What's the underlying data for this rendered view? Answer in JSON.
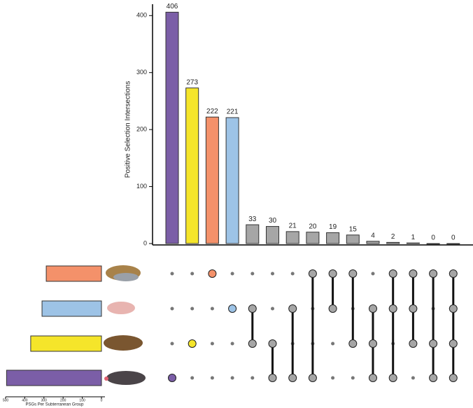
{
  "chart_data": {
    "type": "upset",
    "ylabel": "Positive Selection Intersections",
    "values": [
      406,
      273,
      222,
      221,
      33,
      30,
      21,
      20,
      19,
      15,
      4,
      2,
      1,
      0,
      0
    ],
    "colors": [
      "#7b5ea7",
      "#f5e52a",
      "#f4916a",
      "#9dc3e6",
      "#a6a6a6",
      "#a6a6a6",
      "#a6a6a6",
      "#a6a6a6",
      "#a6a6a6",
      "#a6a6a6",
      "#a6a6a6",
      "#a6a6a6",
      "#a6a6a6",
      "#a6a6a6",
      "#a6a6a6"
    ],
    "members": [
      [
        3
      ],
      [
        2
      ],
      [
        0
      ],
      [
        1
      ],
      [
        1,
        2
      ],
      [
        2,
        3
      ],
      [
        1,
        3
      ],
      [
        0,
        3
      ],
      [
        0,
        1
      ],
      [
        0,
        2
      ],
      [
        1,
        2,
        3
      ],
      [
        0,
        1,
        3
      ],
      [
        0,
        1,
        2
      ],
      [
        0,
        2,
        3
      ],
      [
        0,
        1,
        2,
        3
      ]
    ],
    "ylim": [
      0,
      420
    ],
    "yticks": [
      0,
      100,
      200,
      300,
      400
    ],
    "set_sizes": {
      "xlabel": "PSGs Per Subterranean Group",
      "values": [
        288,
        310,
        369,
        495
      ],
      "colors": [
        "#f4916a",
        "#9dc3e6",
        "#f5e52a",
        "#7b5ea7"
      ],
      "xlim": [
        500,
        0
      ],
      "xticks": [
        500,
        400,
        300,
        200,
        100,
        0
      ]
    }
  }
}
